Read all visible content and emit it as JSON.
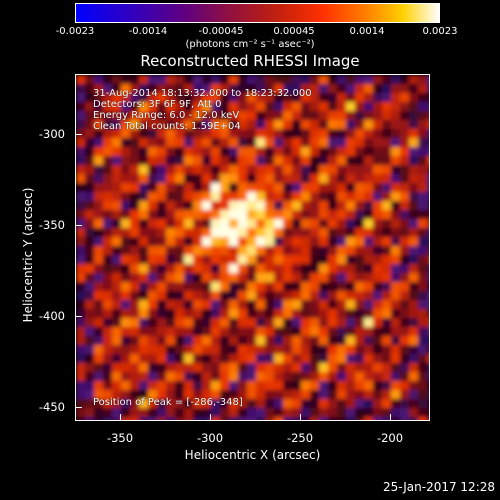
{
  "colorbar": {
    "ticks": [
      "-0.0023",
      "-0.0014",
      "-0.00045",
      "0.00045",
      "0.0014",
      "0.0023"
    ],
    "units": "(photons cm⁻² s⁻¹ asec⁻²)"
  },
  "title": "Reconstructed RHESSI Image",
  "annotations": {
    "time_range": "31-Aug-2014 18:13:32.000 to 18:23:32.000",
    "detectors": "Detectors: 3F 6F 9F, Att 0",
    "energy": "Energy Range: 6.0 - 12.0 keV",
    "clean": "Clean    Total counts: 1.59E+04",
    "peak": "Position of Peak = [-286,-348]"
  },
  "axes": {
    "xlabel": "Heliocentric X (arcsec)",
    "ylabel": "Heliocentric Y (arcsec)",
    "xticks": [
      "-350",
      "-300",
      "-250",
      "-200"
    ],
    "yticks": [
      "-300",
      "-350",
      "-400",
      "-450"
    ]
  },
  "footer": {
    "timestamp": "25-Jan-2017 12:28"
  },
  "colors": {
    "cmap_low": "#0000ff",
    "cmap_mid": "#ff2a00",
    "cmap_high": "#ffffff"
  }
}
